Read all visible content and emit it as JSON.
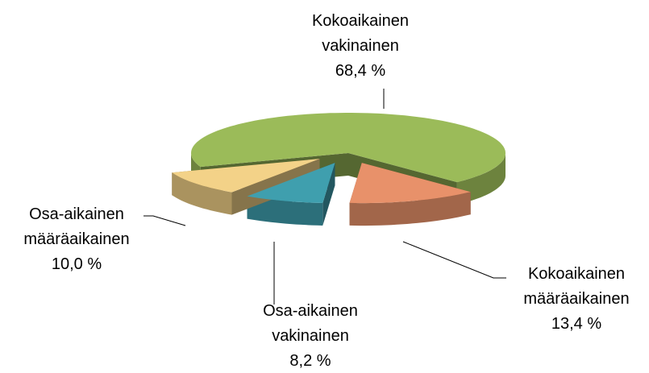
{
  "chart_data": {
    "type": "pie3d",
    "categories": [
      "Kokoaikainen vakinainen",
      "Kokoaikainen määräaikainen",
      "Osa-aikainen vakinainen",
      "Osa-aikainen määräaikainen"
    ],
    "values": [
      68.4,
      13.4,
      8.2,
      10.0
    ],
    "value_labels": [
      "68,4 %",
      "13,4 %",
      "8,2 %",
      "10,0 %"
    ],
    "colors": [
      "#9bbb59",
      "#e8916a",
      "#3f9fae",
      "#f3d288"
    ]
  }
}
